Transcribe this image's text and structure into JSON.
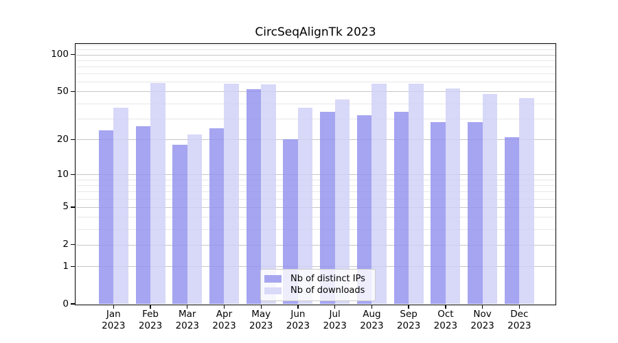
{
  "title": "CircSeqAlignTk 2023",
  "chart_data": {
    "type": "bar",
    "title": "CircSeqAlignTk 2023",
    "categories": [
      "Jan 2023",
      "Feb 2023",
      "Mar 2023",
      "Apr 2023",
      "May 2023",
      "Jun 2023",
      "Jul 2023",
      "Aug 2023",
      "Sep 2023",
      "Oct 2023",
      "Nov 2023",
      "Dec 2023"
    ],
    "series": [
      {
        "name": "Nb of distinct IPs",
        "color": "rgba(145,145,238,0.82)",
        "values": [
          24,
          26,
          18,
          25,
          52,
          20,
          34,
          32,
          34,
          28,
          28,
          21
        ]
      },
      {
        "name": "Nb of downloads",
        "color": "rgba(207,207,246,0.82)",
        "values": [
          37,
          59,
          22,
          58,
          57,
          37,
          43,
          58,
          58,
          53,
          48,
          44
        ]
      }
    ],
    "yscale": "log1p",
    "ylim": [
      0,
      121.5
    ],
    "yticks": [
      0,
      1,
      2,
      5,
      10,
      20,
      50,
      100
    ],
    "minor_yticks": [
      3,
      4,
      6,
      7,
      8,
      9,
      30,
      40,
      60,
      70,
      80,
      90,
      110,
      120
    ],
    "grid": "horizontal",
    "legend_position": "lower center",
    "xlabel": "",
    "ylabel": ""
  },
  "colors": {
    "major_grid": "#c6c6c6",
    "minor_grid": "#e7e7e7",
    "axis": "#000000",
    "legend_swatch_ips": "#a6a6f0",
    "legend_swatch_downloads": "#d9d9f8",
    "legend_border": "#cccccc"
  }
}
